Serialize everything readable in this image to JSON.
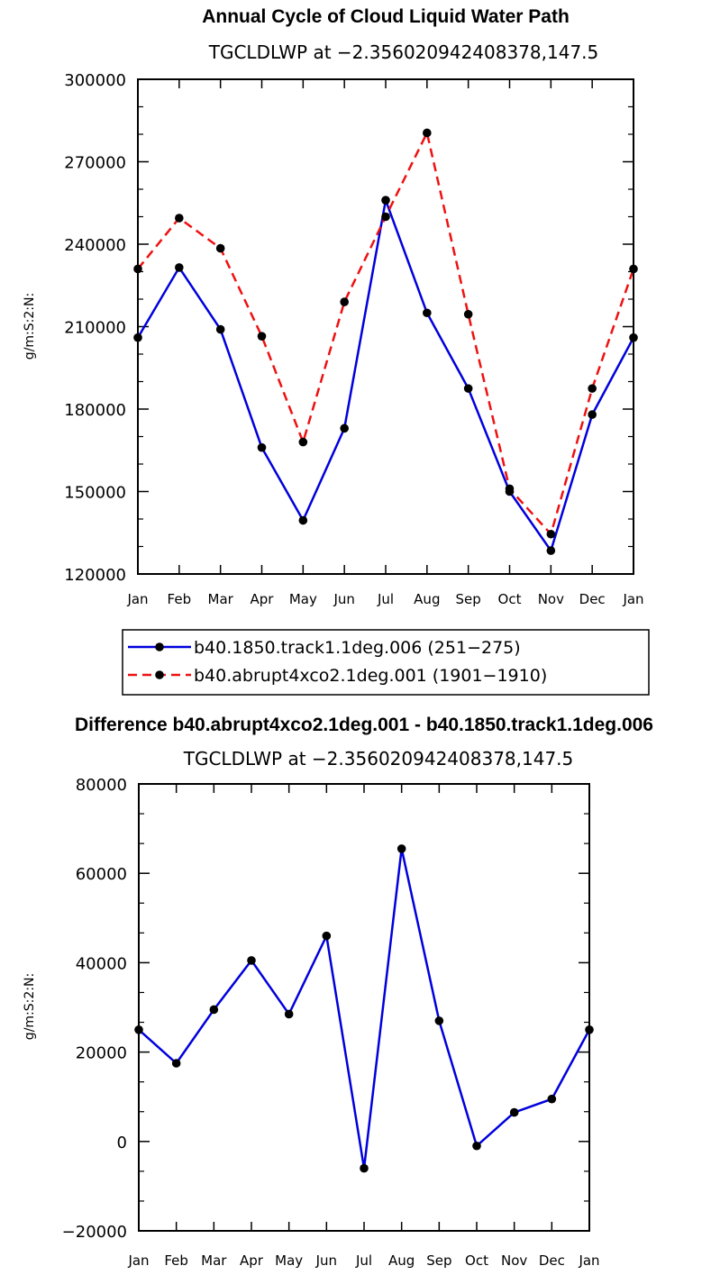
{
  "chart_data": [
    {
      "type": "line",
      "title": "Annual Cycle of Cloud Liquid Water Path",
      "subtitle": "TGCLDLWP at −2.356020942408378,147.5",
      "ylabel": "g/m:S:2:N:",
      "xlabel": "",
      "categories": [
        "Jan",
        "Feb",
        "Mar",
        "Apr",
        "May",
        "Jun",
        "Jul",
        "Aug",
        "Sep",
        "Oct",
        "Nov",
        "Dec",
        "Jan"
      ],
      "ylim": [
        120000,
        300000
      ],
      "yticks": [
        "120000",
        "150000",
        "180000",
        "210000",
        "240000",
        "270000",
        "300000"
      ],
      "legend_position": "bottom",
      "series": [
        {
          "name": "b40.1850.track1.1deg.006 (251−275)",
          "color": "#0000dd",
          "dash": "solid",
          "values": [
            206000,
            231500,
            209000,
            166000,
            139500,
            173000,
            256000,
            215000,
            187500,
            150000,
            128500,
            178000,
            206000
          ]
        },
        {
          "name": "b40.abrupt4xco2.1deg.001 (1901−1910)",
          "color": "#ee1111",
          "dash": "dashed",
          "values": [
            231000,
            249500,
            238500,
            206500,
            168000,
            219000,
            250000,
            280500,
            214500,
            151000,
            134500,
            187500,
            231000
          ]
        }
      ]
    },
    {
      "type": "line",
      "title": "Difference b40.abrupt4xco2.1deg.001 - b40.1850.track1.1deg.006",
      "subtitle": "TGCLDLWP at −2.356020942408378,147.5",
      "ylabel": "g/m:S:2:N:",
      "xlabel": "",
      "categories": [
        "Jan",
        "Feb",
        "Mar",
        "Apr",
        "May",
        "Jun",
        "Jul",
        "Aug",
        "Sep",
        "Oct",
        "Nov",
        "Dec",
        "Jan"
      ],
      "ylim": [
        -20000,
        80000
      ],
      "yticks": [
        "−20000",
        "0",
        "20000",
        "40000",
        "60000",
        "80000"
      ],
      "series": [
        {
          "color": "#0000dd",
          "dash": "solid",
          "values": [
            25000,
            17500,
            29500,
            40500,
            28500,
            46000,
            -6000,
            65500,
            27000,
            -1000,
            6500,
            9500,
            25000
          ]
        }
      ]
    }
  ]
}
